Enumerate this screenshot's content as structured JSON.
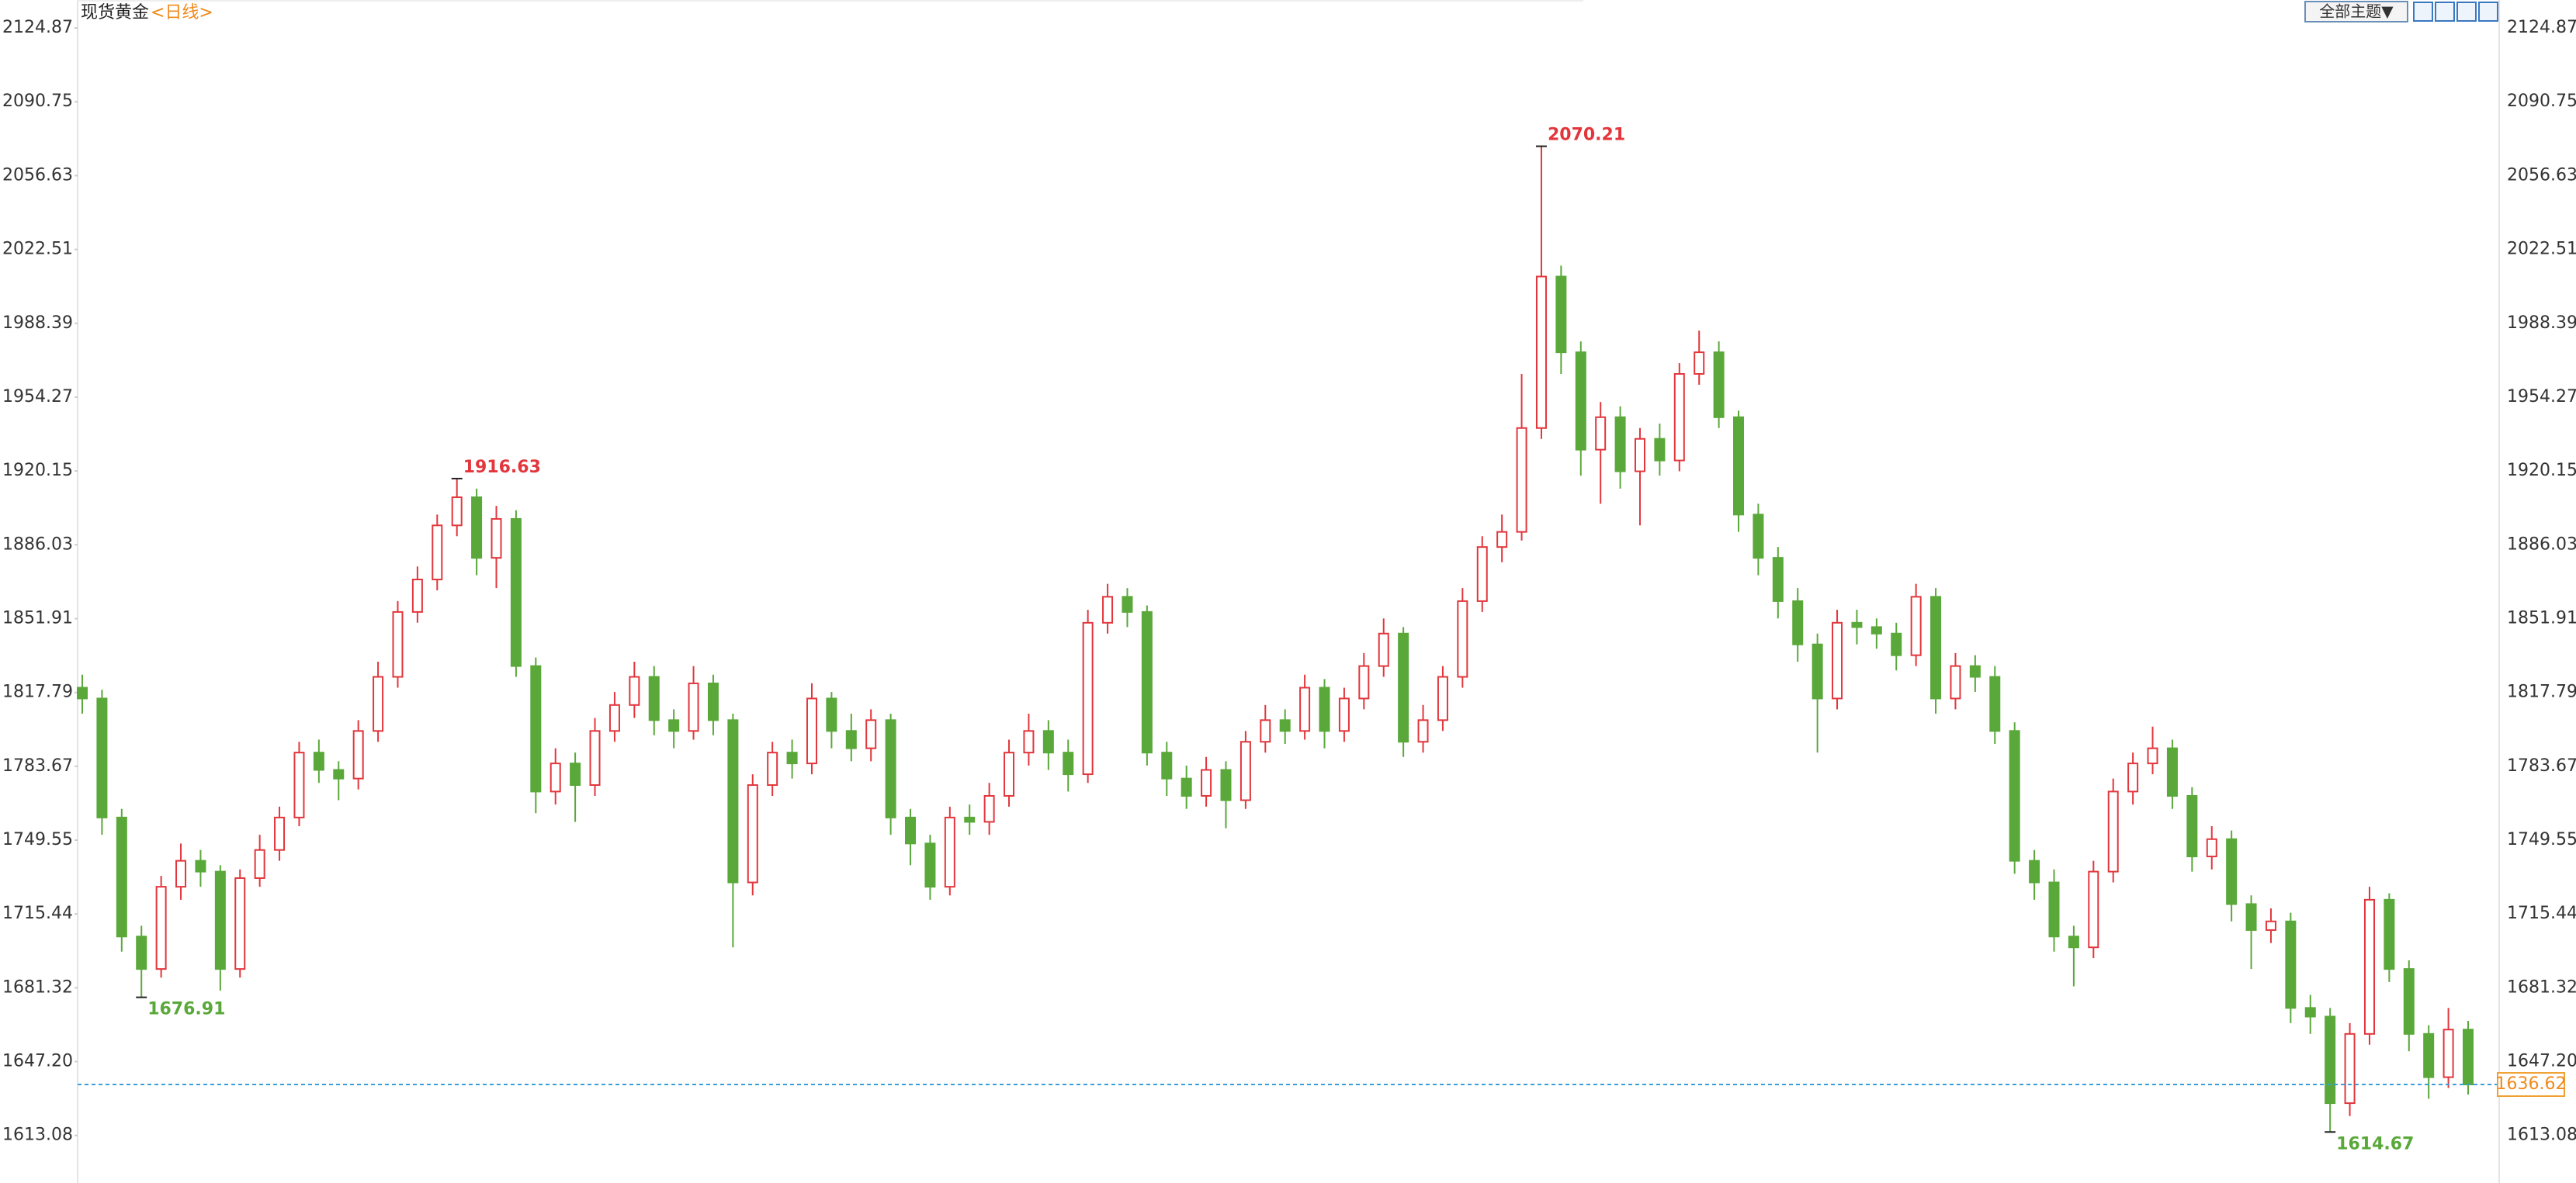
{
  "chart_data": {
    "type": "candlestick",
    "title": "现货黄金",
    "subtitle": "<日线>",
    "toolbar_button": "全部主题▼",
    "open": [
      1820,
      1815,
      1760,
      1705,
      1690,
      1728,
      1740,
      1735,
      1690,
      1732,
      1745,
      1760,
      1790,
      1782,
      1778,
      1800,
      1825,
      1855,
      1870,
      1895,
      1908,
      1880,
      1898,
      1830,
      1772,
      1785,
      1775,
      1800,
      1812,
      1825,
      1805,
      1800,
      1822,
      1805,
      1730,
      1775,
      1790,
      1785,
      1815,
      1800,
      1792,
      1805,
      1760,
      1748,
      1728,
      1760,
      1758,
      1770,
      1790,
      1800,
      1790,
      1780,
      1850,
      1862,
      1855,
      1790,
      1778,
      1770,
      1782,
      1768,
      1795,
      1805,
      1800,
      1820,
      1800,
      1815,
      1830,
      1845,
      1795,
      1805,
      1825,
      1860,
      1885,
      1892,
      1940,
      2010,
      1975,
      1930,
      1945,
      1920,
      1935,
      1925,
      1965,
      1975,
      1945,
      1900,
      1880,
      1860,
      1840,
      1815,
      1850,
      1848,
      1845,
      1835,
      1862,
      1815,
      1830,
      1825,
      1800,
      1740,
      1730,
      1705,
      1700,
      1735,
      1772,
      1785,
      1792,
      1770,
      1742,
      1750,
      1720,
      1708,
      1712,
      1672,
      1668,
      1628,
      1660,
      1722,
      1690,
      1660,
      1640,
      1662
    ],
    "high": [
      1826,
      1819,
      1764,
      1710,
      1733,
      1748,
      1745,
      1738,
      1736,
      1752,
      1765,
      1795,
      1796,
      1786,
      1805,
      1832,
      1860,
      1876,
      1900,
      1916.63,
      1912,
      1904,
      1902,
      1834,
      1792,
      1790,
      1806,
      1818,
      1832,
      1830,
      1810,
      1830,
      1826,
      1808,
      1780,
      1795,
      1796,
      1822,
      1818,
      1808,
      1810,
      1808,
      1764,
      1752,
      1765,
      1766,
      1776,
      1796,
      1808,
      1805,
      1796,
      1856,
      1868,
      1866,
      1858,
      1795,
      1784,
      1788,
      1786,
      1800,
      1812,
      1810,
      1826,
      1824,
      1820,
      1836,
      1852,
      1848,
      1812,
      1830,
      1866,
      1890,
      1900,
      1965,
      2070.21,
      2015,
      1980,
      1952,
      1950,
      1940,
      1942,
      1970,
      1985,
      1980,
      1948,
      1905,
      1885,
      1866,
      1845,
      1856,
      1856,
      1852,
      1850,
      1868,
      1866,
      1836,
      1835,
      1830,
      1804,
      1745,
      1736,
      1710,
      1740,
      1778,
      1790,
      1802,
      1796,
      1774,
      1756,
      1754,
      1724,
      1718,
      1716,
      1678,
      1672,
      1665,
      1728,
      1725,
      1694,
      1664,
      1672,
      1666
    ],
    "low": [
      1808,
      1752,
      1698,
      1676.91,
      1686,
      1722,
      1728,
      1680,
      1686,
      1728,
      1740,
      1756,
      1776,
      1768,
      1773,
      1795,
      1820,
      1850,
      1865,
      1890,
      1872,
      1866,
      1825,
      1762,
      1766,
      1758,
      1770,
      1795,
      1806,
      1798,
      1792,
      1796,
      1798,
      1700,
      1724,
      1770,
      1778,
      1780,
      1792,
      1786,
      1786,
      1752,
      1738,
      1722,
      1724,
      1752,
      1752,
      1765,
      1784,
      1782,
      1772,
      1776,
      1845,
      1848,
      1784,
      1770,
      1764,
      1765,
      1755,
      1764,
      1790,
      1794,
      1796,
      1792,
      1795,
      1810,
      1825,
      1788,
      1790,
      1800,
      1820,
      1855,
      1878,
      1888,
      1935,
      1965,
      1918,
      1905,
      1912,
      1895,
      1918,
      1920,
      1960,
      1940,
      1892,
      1872,
      1852,
      1832,
      1790,
      1810,
      1840,
      1838,
      1828,
      1830,
      1808,
      1810,
      1818,
      1794,
      1734,
      1722,
      1698,
      1682,
      1695,
      1730,
      1766,
      1780,
      1764,
      1735,
      1736,
      1712,
      1690,
      1702,
      1665,
      1660,
      1614.67,
      1622,
      1655,
      1684,
      1652,
      1630,
      1635,
      1632
    ],
    "close": [
      1815,
      1760,
      1705,
      1690,
      1728,
      1740,
      1735,
      1690,
      1732,
      1745,
      1760,
      1790,
      1782,
      1778,
      1800,
      1825,
      1855,
      1870,
      1895,
      1908,
      1880,
      1898,
      1830,
      1772,
      1785,
      1775,
      1800,
      1812,
      1825,
      1805,
      1800,
      1822,
      1805,
      1730,
      1775,
      1790,
      1785,
      1815,
      1800,
      1792,
      1805,
      1760,
      1748,
      1728,
      1760,
      1758,
      1770,
      1790,
      1800,
      1790,
      1780,
      1850,
      1862,
      1855,
      1790,
      1778,
      1770,
      1782,
      1768,
      1795,
      1805,
      1800,
      1820,
      1800,
      1815,
      1830,
      1845,
      1795,
      1805,
      1825,
      1860,
      1885,
      1892,
      1940,
      2010,
      1975,
      1930,
      1945,
      1920,
      1935,
      1925,
      1965,
      1975,
      1945,
      1900,
      1880,
      1860,
      1840,
      1815,
      1850,
      1848,
      1845,
      1835,
      1862,
      1815,
      1830,
      1825,
      1800,
      1740,
      1730,
      1705,
      1700,
      1735,
      1772,
      1785,
      1792,
      1770,
      1742,
      1750,
      1720,
      1708,
      1712,
      1672,
      1668,
      1628,
      1660,
      1722,
      1690,
      1660,
      1640,
      1662,
      1636.62
    ],
    "up_color": "#e2363c",
    "down_color": "#5aa83a",
    "annotations": [
      2070.21,
      1916.63,
      1676.91,
      1614.67
    ],
    "last": 1636.62,
    "ylim": [
      1591.1,
      2137.8
    ],
    "yticks": [
      2124.87,
      2090.75,
      2056.63,
      2022.51,
      1988.39,
      1954.27,
      1920.15,
      1886.03,
      1851.91,
      1817.79,
      1783.67,
      1749.55,
      1715.44,
      1681.32,
      {
        "value": 1647.2,
        "label": "1647.20"
      },
      1613.08
    ]
  }
}
